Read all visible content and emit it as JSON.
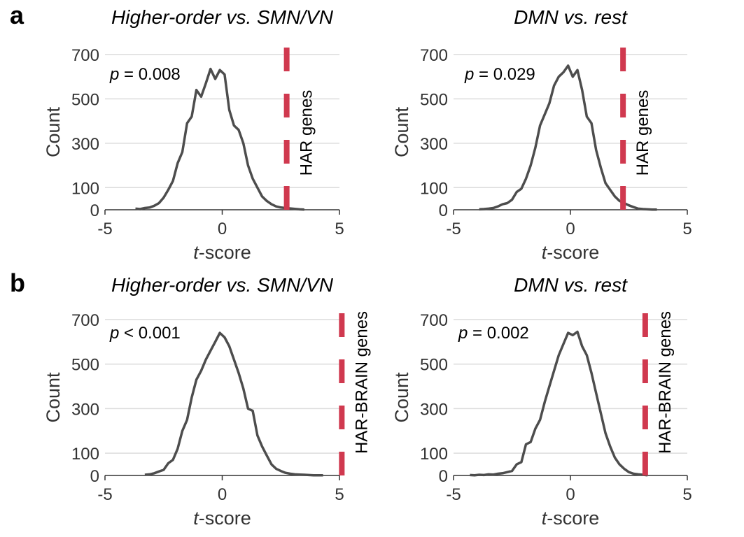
{
  "panels": [
    {
      "letter": "a"
    },
    {
      "letter": "b"
    }
  ],
  "colors": {
    "curve": "#4d4d4d",
    "reference": "#d0394f"
  },
  "chart_data": [
    {
      "type": "line",
      "panel": "a",
      "title": "Higher-order vs. SMN/VN",
      "xlabel_italic": "t",
      "xlabel_rest": "-score",
      "ylabel": "Count",
      "xlim": [
        -5,
        5
      ],
      "ylim": [
        0,
        700
      ],
      "xticks": [
        -5,
        0,
        5
      ],
      "yticks": [
        0,
        100,
        300,
        500,
        700
      ],
      "grid": true,
      "p_italic": "p",
      "p_rest": " = 0.008",
      "reference_x": 2.75,
      "reference_label": "HAR genes",
      "x": [
        -3.7,
        -3.5,
        -3.3,
        -3.1,
        -2.9,
        -2.7,
        -2.5,
        -2.3,
        -2.1,
        -1.9,
        -1.7,
        -1.5,
        -1.3,
        -1.1,
        -0.9,
        -0.7,
        -0.5,
        -0.3,
        -0.1,
        0.1,
        0.3,
        0.5,
        0.7,
        0.9,
        1.1,
        1.3,
        1.5,
        1.7,
        1.9,
        2.1,
        2.3,
        2.5,
        2.7,
        2.9,
        3.1,
        3.3,
        3.5
      ],
      "y": [
        5,
        3,
        8,
        10,
        18,
        30,
        55,
        90,
        130,
        210,
        260,
        390,
        420,
        540,
        510,
        570,
        635,
        590,
        630,
        610,
        450,
        380,
        360,
        300,
        200,
        140,
        100,
        60,
        40,
        25,
        15,
        10,
        8,
        6,
        4,
        2,
        1
      ]
    },
    {
      "type": "line",
      "panel": "a",
      "title": "DMN vs. rest",
      "xlabel_italic": "t",
      "xlabel_rest": "-score",
      "ylabel": "Count",
      "xlim": [
        -5,
        5
      ],
      "ylim": [
        0,
        700
      ],
      "xticks": [
        -5,
        0,
        5
      ],
      "yticks": [
        0,
        100,
        300,
        500,
        700
      ],
      "grid": true,
      "p_italic": "p",
      "p_rest": " = 0.029",
      "reference_x": 2.25,
      "reference_label": "HAR genes",
      "x": [
        -3.9,
        -3.7,
        -3.5,
        -3.3,
        -3.1,
        -2.9,
        -2.7,
        -2.5,
        -2.3,
        -2.1,
        -1.9,
        -1.7,
        -1.5,
        -1.3,
        -1.1,
        -0.9,
        -0.7,
        -0.5,
        -0.3,
        -0.1,
        0.1,
        0.3,
        0.5,
        0.7,
        0.9,
        1.1,
        1.3,
        1.5,
        1.7,
        1.9,
        2.1,
        2.3,
        2.5,
        2.7,
        2.9,
        3.1,
        3.3,
        3.5,
        3.7
      ],
      "y": [
        2,
        3,
        5,
        8,
        15,
        25,
        30,
        45,
        80,
        95,
        140,
        200,
        280,
        380,
        430,
        480,
        560,
        600,
        620,
        650,
        600,
        630,
        540,
        420,
        390,
        270,
        190,
        120,
        90,
        60,
        40,
        30,
        20,
        12,
        5,
        3,
        2,
        1,
        1
      ]
    },
    {
      "type": "line",
      "panel": "b",
      "title": "Higher-order vs. SMN/VN",
      "xlabel_italic": "t",
      "xlabel_rest": "-score",
      "ylabel": "Count",
      "xlim": [
        -5,
        5
      ],
      "ylim": [
        0,
        700
      ],
      "xticks": [
        -5,
        0,
        5
      ],
      "yticks": [
        0,
        100,
        300,
        500,
        700
      ],
      "grid": true,
      "p_italic": "p",
      "p_rest": " < 0.001",
      "reference_x": 5.1,
      "reference_label": "HAR-BRAIN genes",
      "x": [
        -3.3,
        -3.1,
        -2.9,
        -2.7,
        -2.5,
        -2.3,
        -2.1,
        -1.9,
        -1.7,
        -1.5,
        -1.3,
        -1.1,
        -0.9,
        -0.7,
        -0.5,
        -0.3,
        -0.1,
        0.1,
        0.3,
        0.5,
        0.7,
        0.9,
        1.1,
        1.3,
        1.5,
        1.7,
        1.9,
        2.1,
        2.3,
        2.5,
        2.7,
        2.9,
        3.1,
        3.3,
        3.5,
        3.7,
        3.9,
        4.1,
        4.3
      ],
      "y": [
        3,
        5,
        10,
        18,
        25,
        55,
        70,
        120,
        200,
        250,
        350,
        430,
        470,
        520,
        560,
        600,
        640,
        620,
        580,
        520,
        460,
        390,
        300,
        290,
        180,
        130,
        90,
        50,
        30,
        20,
        12,
        8,
        5,
        4,
        3,
        2,
        1,
        1,
        1
      ]
    },
    {
      "type": "line",
      "panel": "b",
      "title": "DMN vs. rest",
      "xlabel_italic": "t",
      "xlabel_rest": "-score",
      "ylabel": "Count",
      "xlim": [
        -5,
        5
      ],
      "ylim": [
        0,
        700
      ],
      "xticks": [
        -5,
        0,
        5
      ],
      "yticks": [
        0,
        100,
        300,
        500,
        700
      ],
      "grid": true,
      "p_italic": "p",
      "p_rest": " = 0.002",
      "reference_x": 3.2,
      "reference_label": "HAR-BRAIN genes",
      "x": [
        -4.3,
        -4.1,
        -3.9,
        -3.7,
        -3.5,
        -3.3,
        -3.1,
        -2.9,
        -2.7,
        -2.5,
        -2.3,
        -2.1,
        -1.9,
        -1.7,
        -1.5,
        -1.3,
        -1.1,
        -0.9,
        -0.7,
        -0.5,
        -0.3,
        -0.1,
        0.1,
        0.3,
        0.5,
        0.7,
        0.9,
        1.1,
        1.3,
        1.5,
        1.7,
        1.9,
        2.1,
        2.3,
        2.5,
        2.7,
        2.9,
        3.1,
        3.3
      ],
      "y": [
        2,
        1,
        3,
        2,
        5,
        4,
        8,
        10,
        15,
        20,
        50,
        60,
        140,
        150,
        210,
        250,
        330,
        400,
        470,
        540,
        590,
        640,
        630,
        645,
        580,
        540,
        460,
        370,
        280,
        190,
        130,
        80,
        50,
        30,
        15,
        8,
        5,
        3,
        1
      ]
    }
  ]
}
